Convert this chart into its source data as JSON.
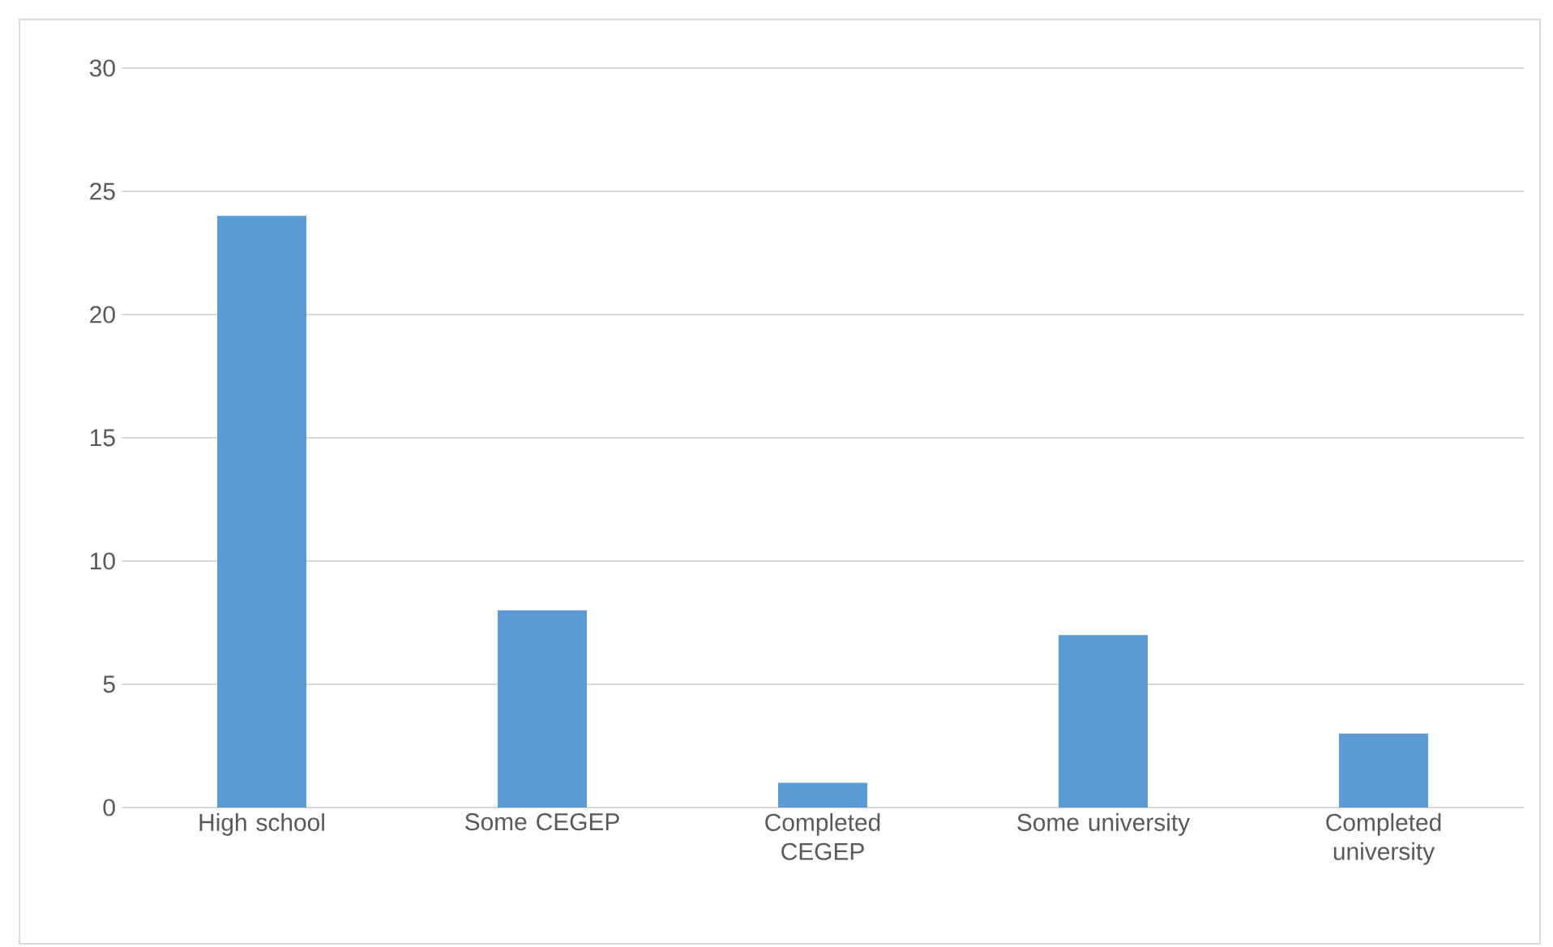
{
  "chart_data": {
    "type": "bar",
    "categories": [
      "High school",
      "Some CEGEP",
      "Completed CEGEP",
      "Some university",
      "Completed university"
    ],
    "values": [
      24,
      8,
      1,
      7,
      3
    ],
    "color": "#5b9bd5",
    "ylim": [
      0,
      30
    ],
    "yticks": [
      0,
      5,
      10,
      15,
      20,
      25,
      30
    ],
    "grid": "y"
  }
}
